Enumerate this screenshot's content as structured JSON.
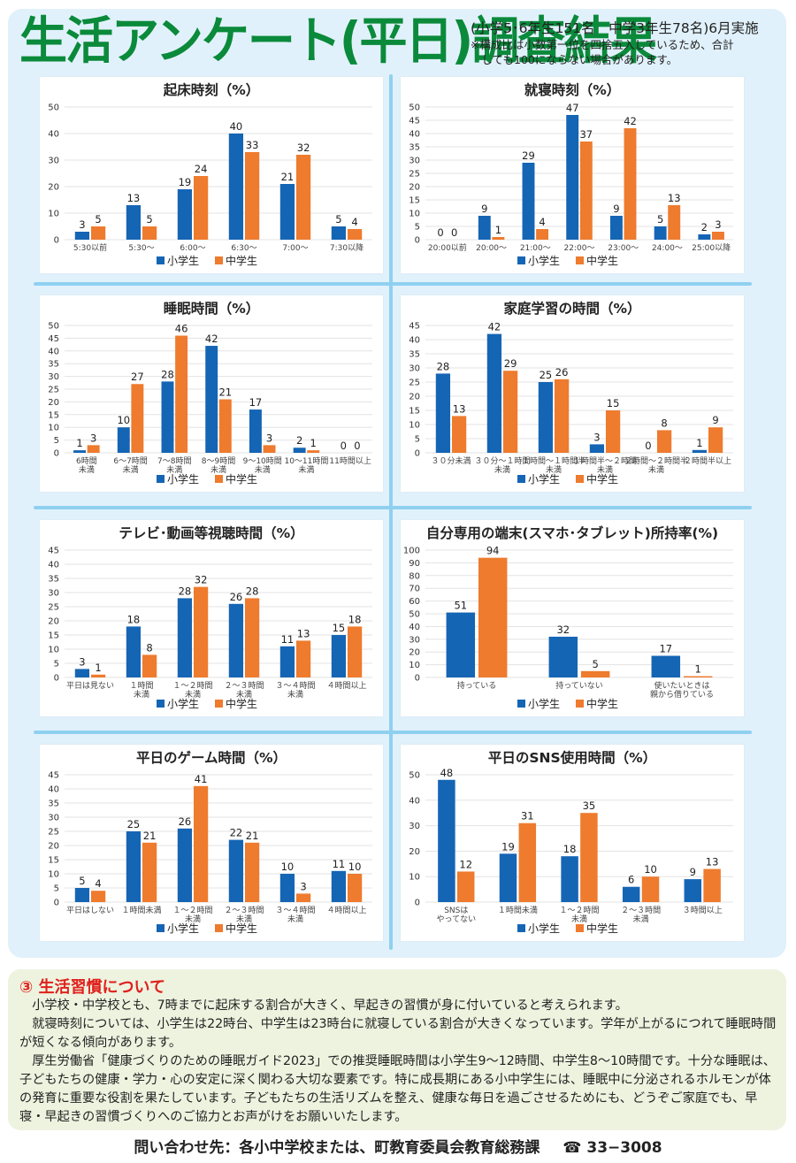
{
  "header": {
    "title": "生活アンケート(平日)調査結果",
    "subtitle": "(小学5･6年生151名　中学3年生78名)6月実施",
    "note": "※構成比は小数第一位を四捨五入しているため、合計\n　しても100にならない場合があります。"
  },
  "colors": {
    "title_green": "#0a8a3a",
    "elementary_blue": "#1565b5",
    "junior_high_orange": "#ee7b2e",
    "panel_bg": "#e1f1fb",
    "comment_bg": "#edf3df",
    "comment_title_red": "#e0201c"
  },
  "legend": {
    "elementary": "小学生",
    "junior_high": "中学生"
  },
  "chart_data": [
    {
      "type": "bar",
      "title": "起床時刻（%）",
      "categories": [
        "5:30以前",
        "5:30〜",
        "6:00〜",
        "6:30〜",
        "7:00〜",
        "7:30以降"
      ],
      "series": [
        {
          "name": "小学生",
          "values": [
            3,
            13,
            19,
            40,
            21,
            5
          ]
        },
        {
          "name": "中学生",
          "values": [
            5,
            5,
            24,
            33,
            32,
            4
          ]
        }
      ],
      "ylim": [
        0,
        50
      ],
      "ystep": 10,
      "grid": true,
      "legend": "bottom",
      "xlabel": "",
      "ylabel": ""
    },
    {
      "type": "bar",
      "title": "就寝時刻（%）",
      "categories": [
        "20:00以前",
        "20:00〜",
        "21:00〜",
        "22:00〜",
        "23:00〜",
        "24:00〜",
        "25:00以降"
      ],
      "series": [
        {
          "name": "小学生",
          "values": [
            0,
            9,
            29,
            47,
            9,
            5,
            2
          ]
        },
        {
          "name": "中学生",
          "values": [
            0,
            1,
            4,
            37,
            42,
            13,
            3
          ]
        }
      ],
      "ylim": [
        0,
        50
      ],
      "ystep": 5,
      "grid": true,
      "legend": "bottom",
      "xlabel": "",
      "ylabel": ""
    },
    {
      "type": "bar",
      "title": "睡眠時間（%）",
      "categories": [
        "6時間\n未満",
        "6〜7時間\n未満",
        "7〜8時間\n未満",
        "8〜9時間\n未満",
        "9〜10時間\n未満",
        "10〜11時間\n未満",
        "11時間以上"
      ],
      "series": [
        {
          "name": "小学生",
          "values": [
            1,
            10,
            28,
            42,
            17,
            2,
            0
          ]
        },
        {
          "name": "中学生",
          "values": [
            3,
            27,
            46,
            21,
            3,
            1,
            0
          ]
        }
      ],
      "ylim": [
        0,
        50
      ],
      "ystep": 5,
      "grid": true,
      "legend": "bottom",
      "xlabel": "",
      "ylabel": ""
    },
    {
      "type": "bar",
      "title": "家庭学習の時間（%）",
      "categories": [
        "３０分未満",
        "３０分〜１時間\n未満",
        "１時間〜１時間半\n未満",
        "１時間半〜２時間\n未満",
        "２時間〜２時間半\n未満",
        "２時間半以上"
      ],
      "series": [
        {
          "name": "小学生",
          "values": [
            28,
            42,
            25,
            3,
            0,
            1
          ]
        },
        {
          "name": "中学生",
          "values": [
            13,
            29,
            26,
            15,
            8,
            9
          ]
        }
      ],
      "ylim": [
        0,
        45
      ],
      "ystep": 5,
      "grid": true,
      "legend": "bottom",
      "xlabel": "",
      "ylabel": ""
    },
    {
      "type": "bar",
      "title": "テレビ･動画等視聴時間（%）",
      "categories": [
        "平日は見ない",
        "１時間\n未満",
        "１〜２時間\n未満",
        "２〜３時間\n未満",
        "３〜４時間\n未満",
        "４時間以上"
      ],
      "series": [
        {
          "name": "小学生",
          "values": [
            3,
            18,
            28,
            26,
            11,
            15
          ]
        },
        {
          "name": "中学生",
          "values": [
            1,
            8,
            32,
            28,
            13,
            18
          ]
        }
      ],
      "ylim": [
        0,
        45
      ],
      "ystep": 5,
      "grid": true,
      "legend": "bottom",
      "xlabel": "",
      "ylabel": ""
    },
    {
      "type": "bar",
      "title": "自分専用の端末(スマホ･タブレット)所持率(%)",
      "categories": [
        "持っている",
        "持っていない",
        "使いたいときは\n親から借りている"
      ],
      "series": [
        {
          "name": "小学生",
          "values": [
            51,
            32,
            17
          ]
        },
        {
          "name": "中学生",
          "values": [
            94,
            5,
            1
          ]
        }
      ],
      "ylim": [
        0,
        100
      ],
      "ystep": 10,
      "grid": true,
      "legend": "bottom",
      "xlabel": "",
      "ylabel": ""
    },
    {
      "type": "bar",
      "title": "平日のゲーム時間（%）",
      "categories": [
        "平日はしない",
        "１時間未満",
        "１〜２時間\n未満",
        "２〜３時間\n未満",
        "３〜４時間\n未満",
        "４時間以上"
      ],
      "series": [
        {
          "name": "小学生",
          "values": [
            5,
            25,
            26,
            22,
            10,
            11
          ]
        },
        {
          "name": "中学生",
          "values": [
            4,
            21,
            41,
            21,
            3,
            10
          ]
        }
      ],
      "ylim": [
        0,
        45
      ],
      "ystep": 5,
      "grid": true,
      "legend": "bottom",
      "xlabel": "",
      "ylabel": ""
    },
    {
      "type": "bar",
      "title": "平日のSNS使用時間（%）",
      "categories": [
        "SNSは\nやってない",
        "１時間未満",
        "１〜２時間\n未満",
        "２〜３時間\n未満",
        "３時間以上"
      ],
      "series": [
        {
          "name": "小学生",
          "values": [
            48,
            19,
            18,
            6,
            9
          ]
        },
        {
          "name": "中学生",
          "values": [
            12,
            31,
            35,
            10,
            13
          ]
        }
      ],
      "ylim": [
        0,
        50
      ],
      "ystep": 10,
      "grid": true,
      "legend": "bottom",
      "xlabel": "",
      "ylabel": ""
    }
  ],
  "comment": {
    "title": "③ 生活習慣について",
    "paragraphs": [
      "小学校・中学校とも、7時までに起床する割合が大きく、早起きの習慣が身に付いていると考えられます。",
      "就寝時刻については、小学生は22時台、中学生は23時台に就寝している割合が大きくなっています。学年が上がるにつれて睡眠時間が短くなる傾向があります。",
      "厚生労働省「健康づくりのための睡眠ガイド2023」での推奨睡眠時間は小学生9〜12時間、中学生8〜10時間です。十分な睡眠は、子どもたちの健康・学力・心の安定に深く関わる大切な要素です。特に成長期にある小中学生には、睡眠中に分泌されるホルモンが体の発育に重要な役割を果たしています。子どもたちの生活リズムを整え、健康な毎日を過ごさせるためにも、どうぞご家庭でも、早寝・早起きの習慣づくりへのご協力とお声がけをお願いいたします。"
    ]
  },
  "contact": {
    "label": "問い合わせ先：各小中学校または、町教育委員会教育総務課",
    "phone_icon": "telephone-icon",
    "phone_glyph": "☎",
    "phone": "33−3008"
  }
}
